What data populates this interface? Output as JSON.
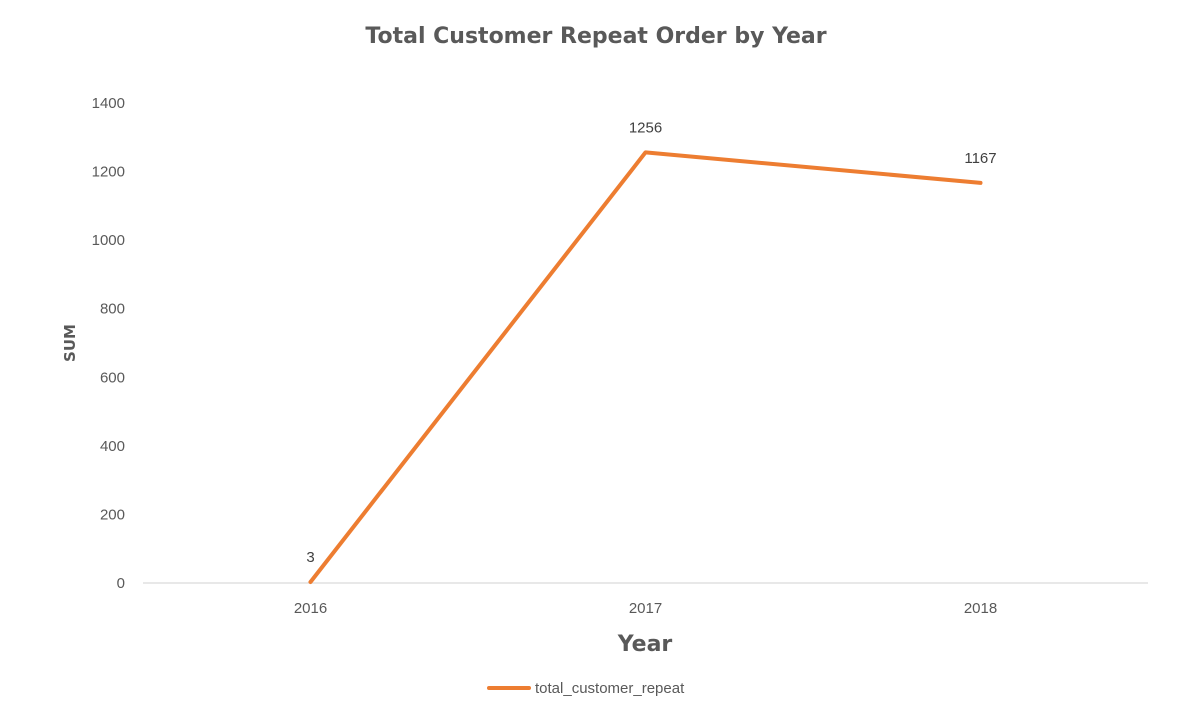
{
  "chart_data": {
    "type": "line",
    "title": "Total Customer Repeat Order by Year",
    "xlabel": "Year",
    "ylabel": "SUM",
    "categories": [
      "2016",
      "2017",
      "2018"
    ],
    "series": [
      {
        "name": "total_customer_repeat",
        "values": [
          3,
          1256,
          1167
        ],
        "color": "#ED7D31"
      }
    ],
    "ylim": [
      0,
      1400
    ],
    "yticks": [
      "0",
      "200",
      "400",
      "600",
      "800",
      "1000",
      "1200",
      "1400"
    ],
    "grid": false,
    "legend": "bottom",
    "data_labels": true
  }
}
